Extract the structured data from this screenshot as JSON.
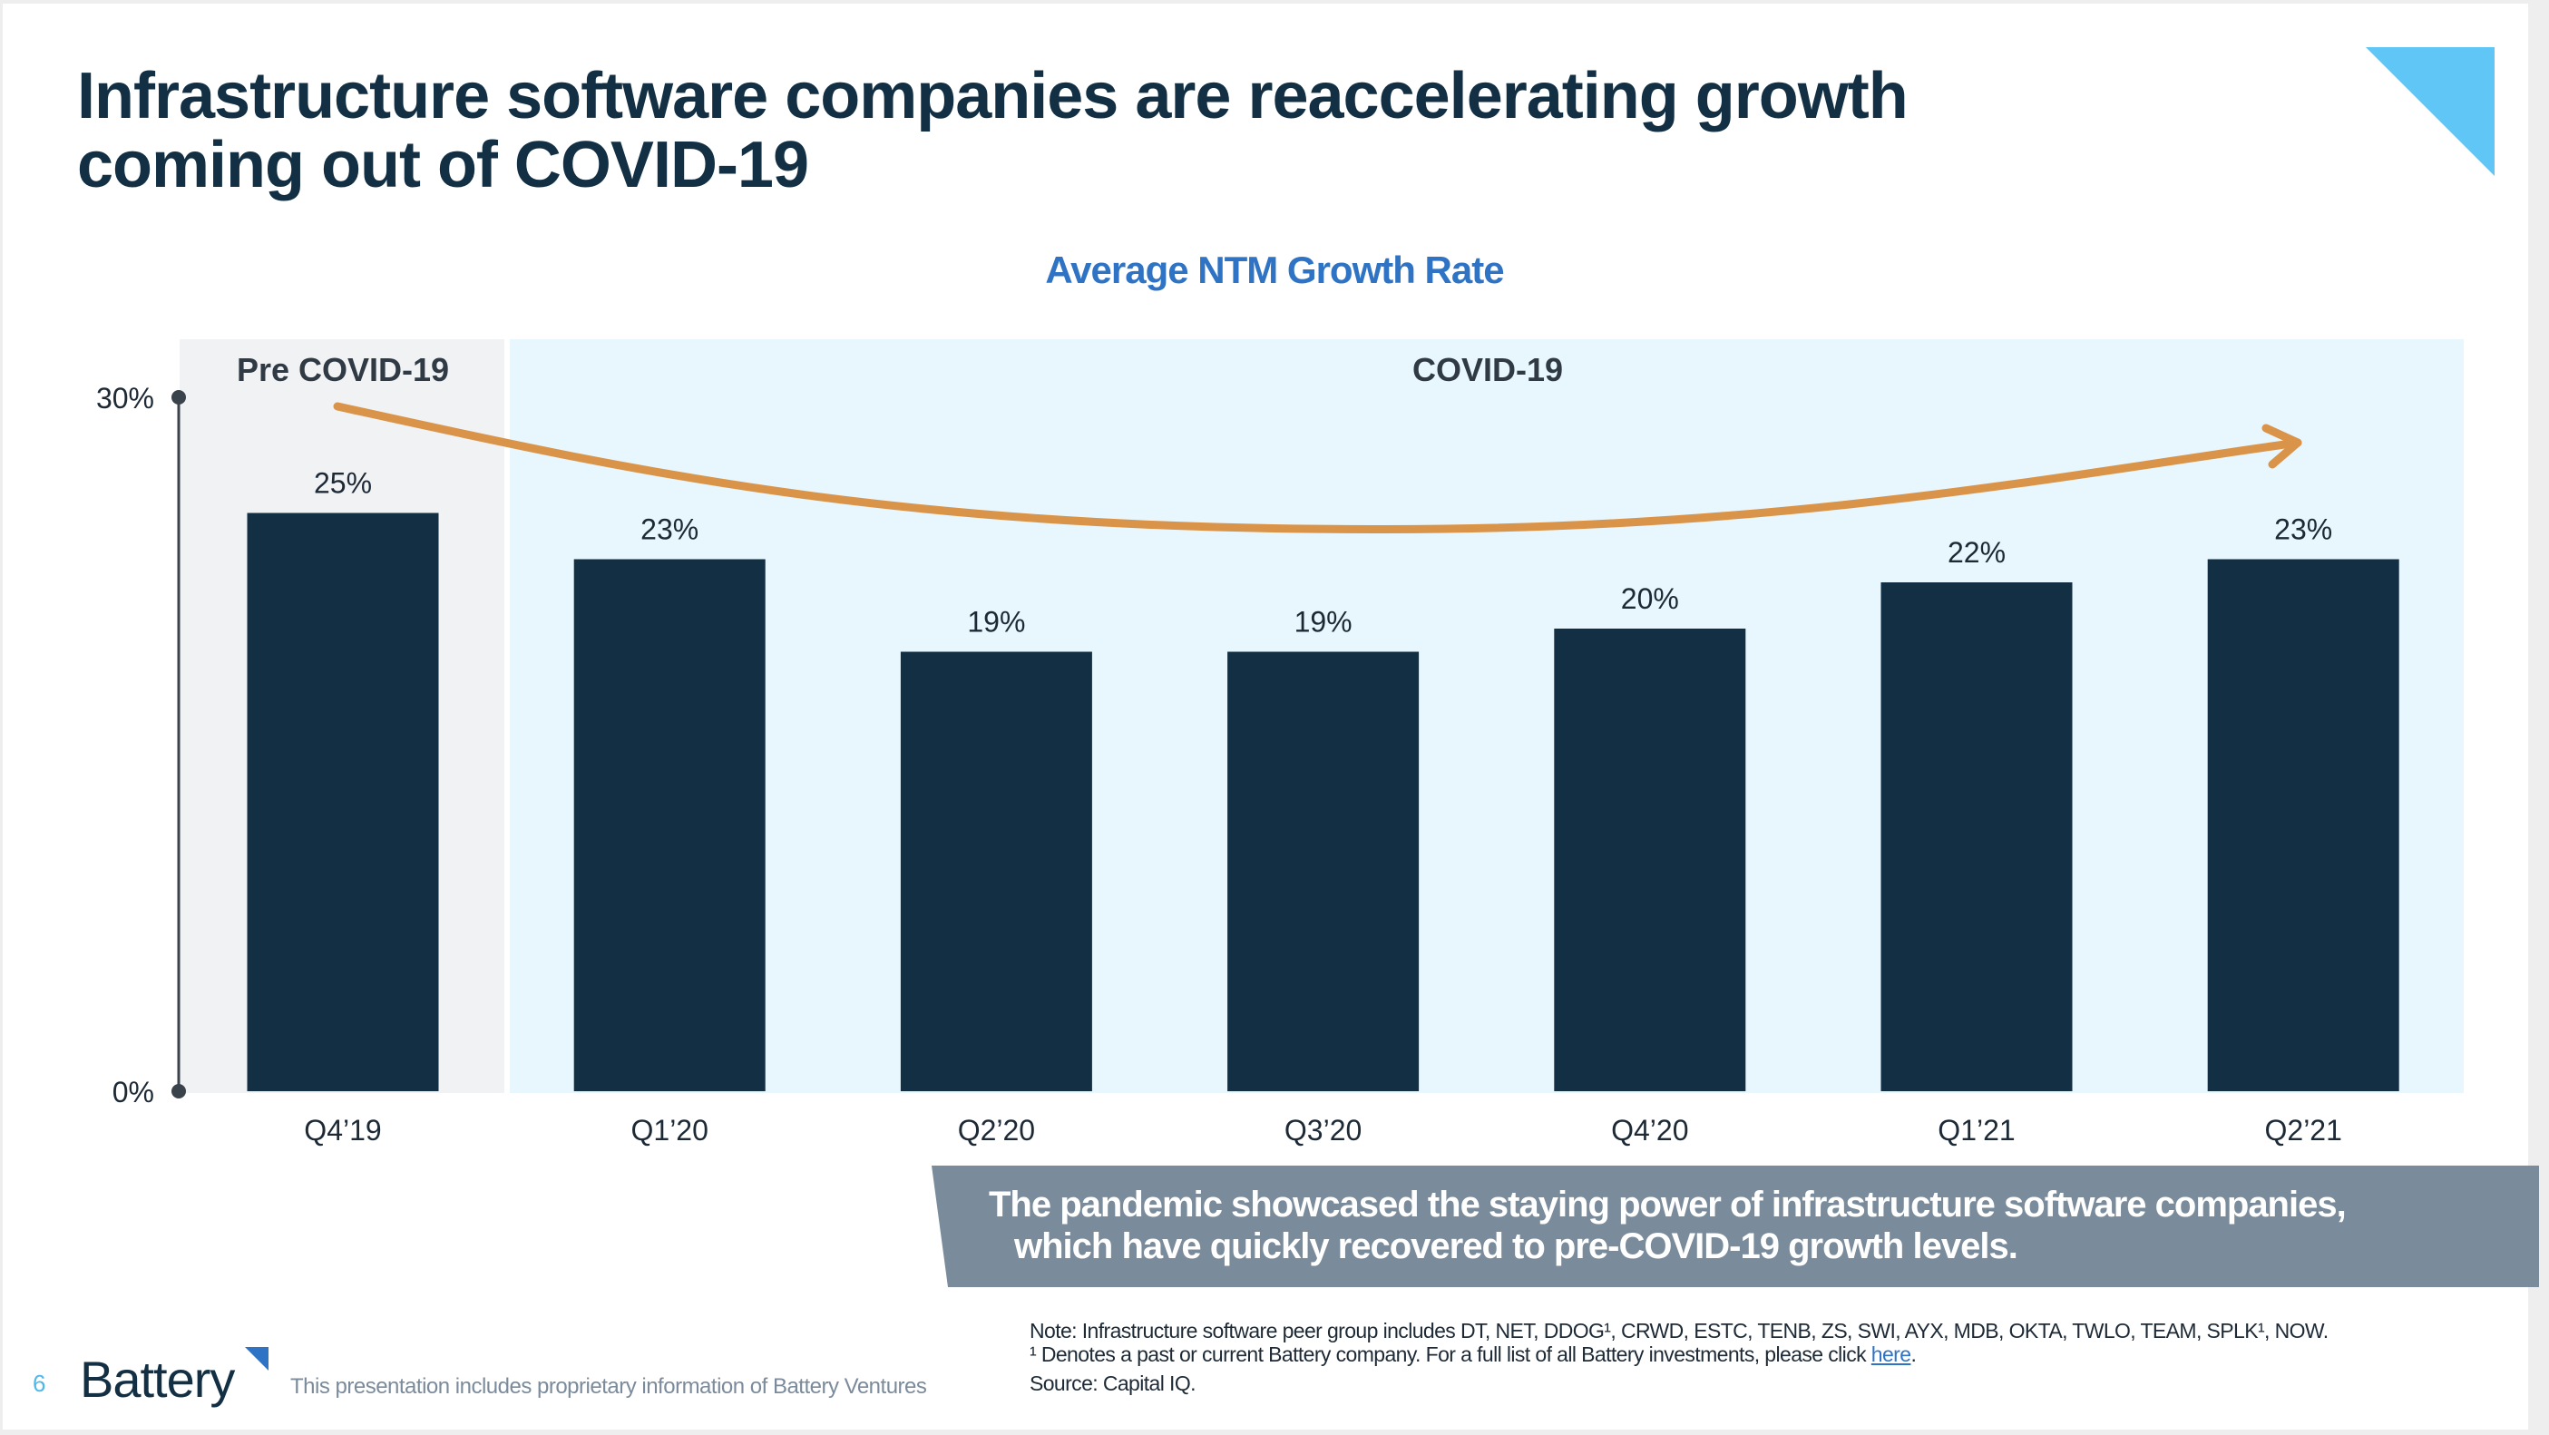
{
  "slide": {
    "title_line1": "Infrastructure software companies are reaccelerating growth",
    "title_line2": "coming out of COVID-19",
    "page_number": "6",
    "logo_text": "Battery",
    "footer_text": "This presentation includes proprietary information of Battery Ventures",
    "banner_line1": "The pandemic showcased the staying power of infrastructure software companies,",
    "banner_line2": "which have quickly recovered to pre-COVID-19 growth levels.",
    "notes": {
      "line1": "Note: Infrastructure software peer group includes DT, NET, DDOG¹, CRWD, ESTC, TENB, ZS, SWI, AYX, MDB, OKTA, TWLO, TEAM, SPLK¹, NOW.",
      "line2": "¹ Denotes a past or current Battery company. For a full list of all Battery investments, please click",
      "link_text": "here",
      "line2_end": ".",
      "line3": "Source: Capital IQ."
    },
    "colors": {
      "title": "#122f44",
      "accent_blue": "#2f73c4",
      "corner_triangle": "#5fc6f5",
      "bar": "#122f44",
      "pre_covid_band": "#f1f2f4",
      "covid_band": "#e8f7fd",
      "arrow": "#d9944a",
      "banner": "#7a8b9b"
    }
  },
  "chart_data": {
    "type": "bar",
    "title": "Average NTM Growth Rate",
    "xlabel": "",
    "ylabel": "",
    "categories": [
      "Q4’19",
      "Q1’20",
      "Q2’20",
      "Q3’20",
      "Q4’20",
      "Q1’21",
      "Q2’21"
    ],
    "values": [
      25,
      23,
      19,
      19,
      20,
      22,
      23
    ],
    "value_labels": [
      "25%",
      "23%",
      "19%",
      "19%",
      "20%",
      "22%",
      "23%"
    ],
    "ylim": [
      0,
      30
    ],
    "yticks": [
      0,
      30
    ],
    "ytick_labels": [
      "0%",
      "30%"
    ],
    "grid": false,
    "periods": [
      {
        "label": "Pre COVID-19",
        "categories": [
          "Q4’19"
        ]
      },
      {
        "label": "COVID-19",
        "categories": [
          "Q1’20",
          "Q2’20",
          "Q3’20",
          "Q4’20",
          "Q1’21",
          "Q2’21"
        ]
      }
    ],
    "annotation": "trend arrow: decline then reacceleration"
  }
}
